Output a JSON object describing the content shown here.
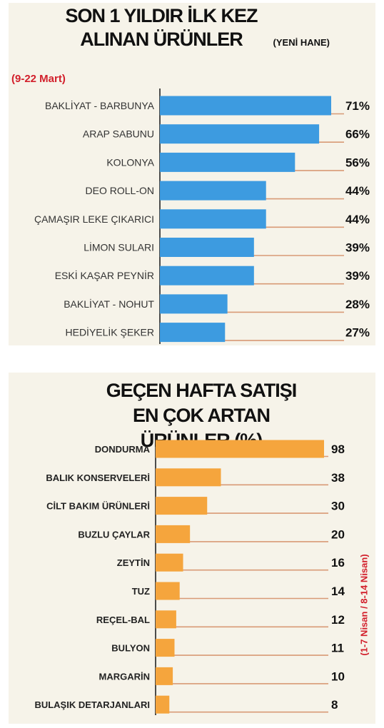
{
  "chart_data": [
    {
      "type": "bar",
      "orientation": "horizontal",
      "title": "SON 1 YILDIR İLK KEZ ALINAN ÜRÜNLER",
      "subtitle": "(YENİ HANE)",
      "period": "(9-22 Mart)",
      "categories": [
        "BAKLİYAT - BARBUNYA",
        "ARAP SABUNU",
        "KOLONYA",
        "DEO ROLL-ON",
        "ÇAMAŞIR LEKE ÇIKARICI",
        "LİMON SULARI",
        "ESKİ KAŞAR PEYNİR",
        "BAKLİYAT - NOHUT",
        "HEDİYELİK ŞEKER"
      ],
      "values": [
        71,
        66,
        56,
        44,
        44,
        39,
        39,
        28,
        27
      ],
      "value_labels": [
        "71%",
        "66%",
        "56%",
        "44%",
        "44%",
        "39%",
        "39%",
        "28%",
        "27%"
      ],
      "unit": "%",
      "xlim": [
        0,
        71
      ],
      "color": "#3d9be0",
      "grid": false,
      "legend": "none"
    },
    {
      "type": "bar",
      "orientation": "horizontal",
      "title": "GEÇEN HAFTA SATIŞI EN ÇOK ARTAN ÜRÜNLER (%)",
      "period": "(1-7 Nisan / 8-14 Nisan)",
      "categories": [
        "DONDURMA",
        "BALIK KONSERVELERİ",
        "CİLT BAKIM ÜRÜNLERİ",
        "BUZLU ÇAYLAR",
        "ZEYTİN",
        "TUZ",
        "REÇEL-BAL",
        "BULYON",
        "MARGARİN",
        "BULAŞIK DETARJANLARI"
      ],
      "values": [
        98,
        38,
        30,
        20,
        16,
        14,
        12,
        11,
        10,
        8
      ],
      "value_labels": [
        "98",
        "38",
        "30",
        "20",
        "16",
        "14",
        "12",
        "11",
        "10",
        "8"
      ],
      "xlim": [
        0,
        98
      ],
      "color": "#f5a53d",
      "grid": false,
      "legend": "none"
    }
  ]
}
